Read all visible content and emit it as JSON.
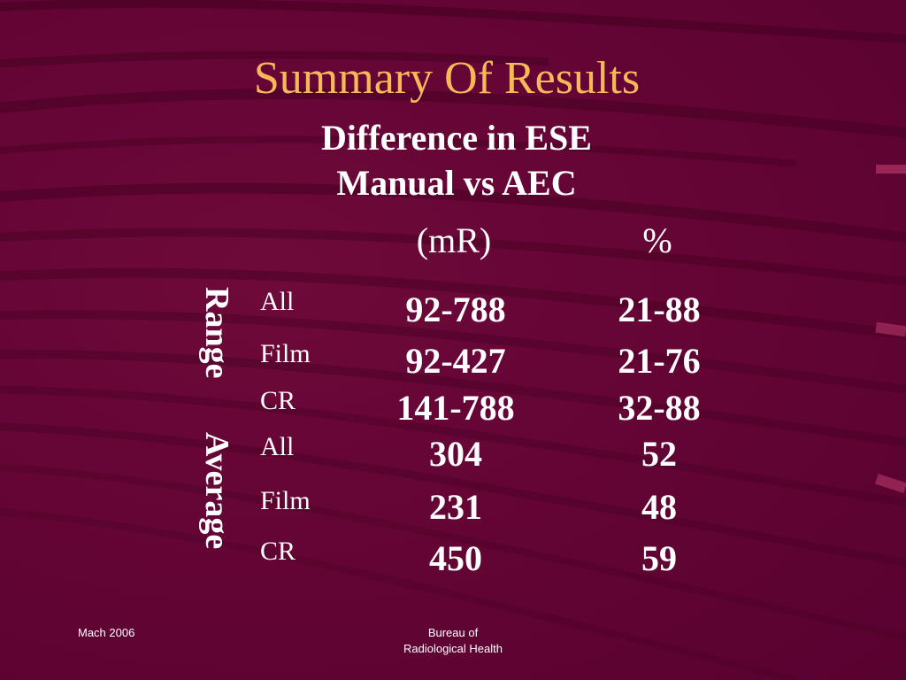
{
  "slide": {
    "title": "Summary Of Results",
    "subtitle_line1": "Difference in ESE",
    "subtitle_line2": "Manual vs AEC",
    "accent_color": "#f6b95a",
    "background_color": "#640534"
  },
  "table": {
    "column_headers": [
      "(mR)",
      "%"
    ],
    "groups": [
      {
        "label": "Range",
        "rows": [
          {
            "label": "All",
            "mR": "92-788",
            "pct": "21-88"
          },
          {
            "label": "Film",
            "mR": "92-427",
            "pct": "21-76"
          },
          {
            "label": "CR",
            "mR": "141-788",
            "pct": "32-88"
          }
        ]
      },
      {
        "label": "Average",
        "rows": [
          {
            "label": "All",
            "mR": "304",
            "pct": "52"
          },
          {
            "label": "Film",
            "mR": "231",
            "pct": "48"
          },
          {
            "label": "CR",
            "mR": "450",
            "pct": "59"
          }
        ]
      }
    ]
  },
  "footer": {
    "date": "Mach 2006",
    "org_line1": "Bureau of",
    "org_line2": "Radiological Health"
  }
}
